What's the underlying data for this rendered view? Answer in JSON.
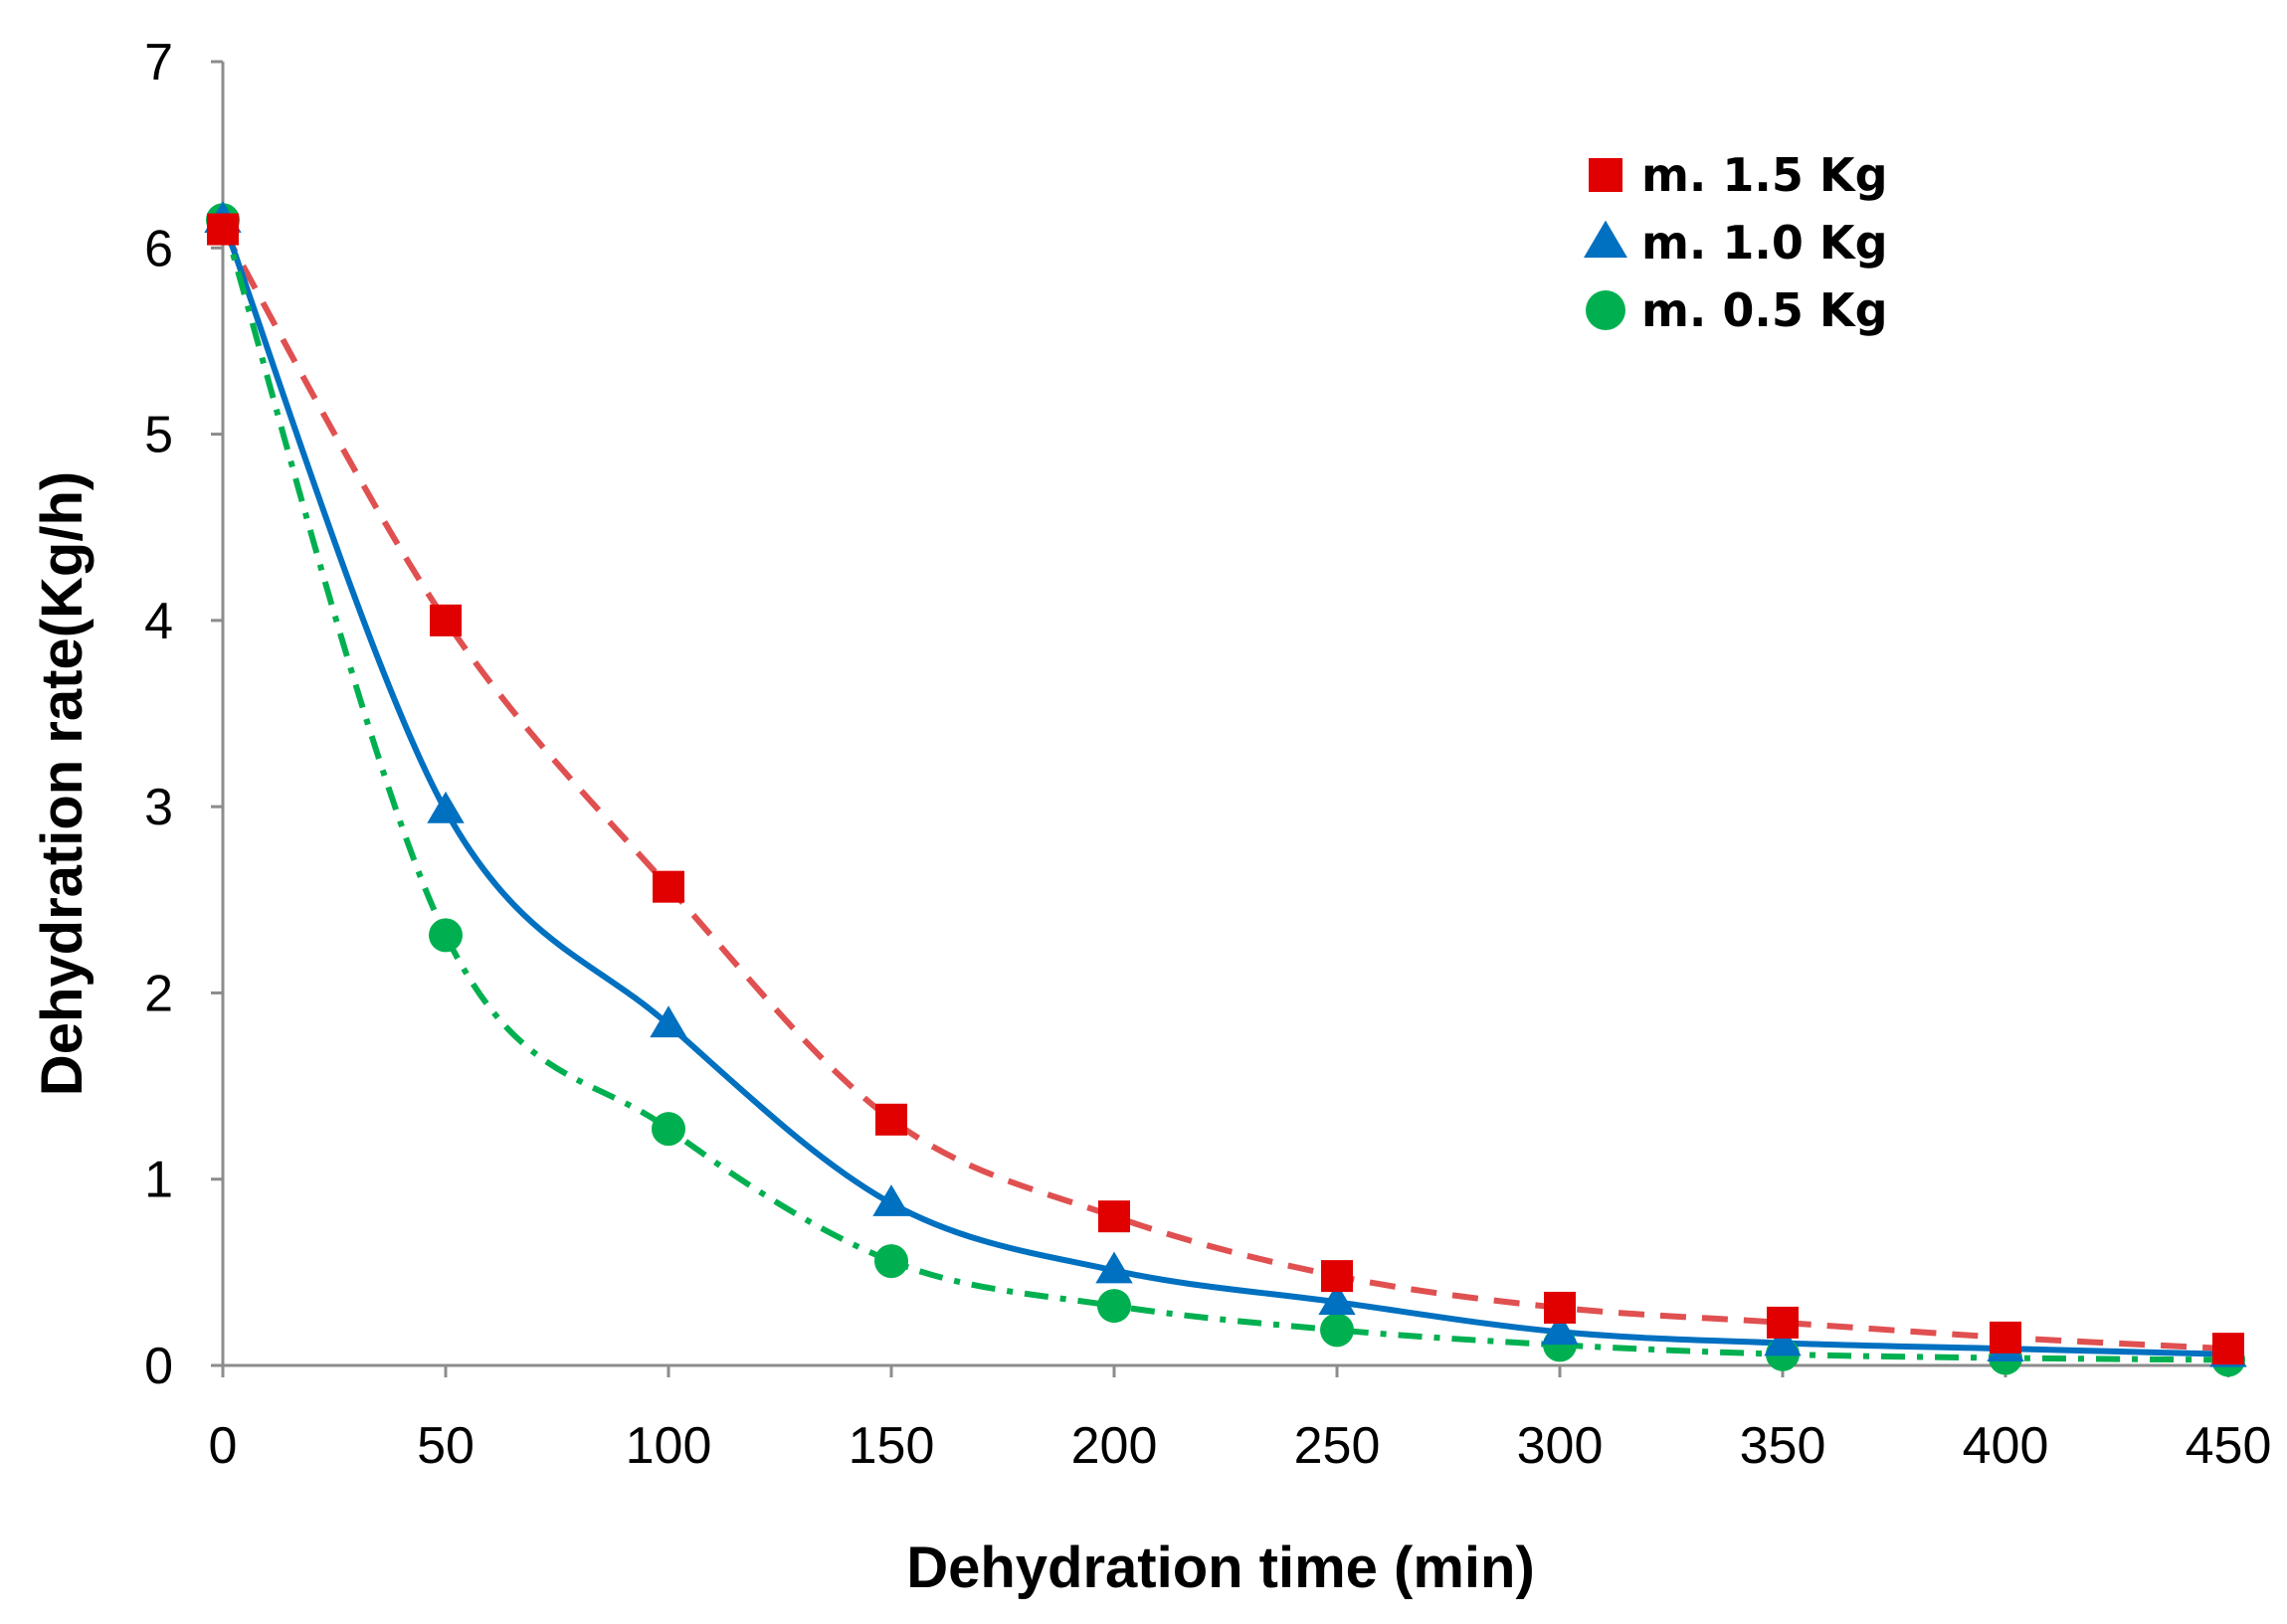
{
  "chart_data": {
    "type": "scatter",
    "title": "",
    "xlabel": "Dehydration time (min)",
    "ylabel": "Dehydration rate(Kg/h)",
    "xlim": [
      0,
      450
    ],
    "ylim": [
      0,
      7
    ],
    "x_ticks": [
      "0",
      "50",
      "100",
      "150",
      "200",
      "250",
      "300",
      "350",
      "400",
      "450"
    ],
    "y_ticks": [
      "0",
      "1",
      "2",
      "3",
      "4",
      "5",
      "6",
      "7"
    ],
    "grid": false,
    "legend_position": "top-right",
    "x": [
      0,
      50,
      100,
      150,
      200,
      250,
      300,
      350,
      400,
      450
    ],
    "series": [
      {
        "name": "m. 1.5 Kg",
        "marker": "square",
        "line_style": "dashed",
        "color": "#e00000",
        "line_color": "#e05050",
        "values": [
          6.1,
          4.0,
          2.57,
          1.32,
          0.8,
          0.48,
          0.31,
          0.23,
          0.15,
          0.09
        ]
      },
      {
        "name": "m. 1.0 Kg",
        "marker": "triangle",
        "line_style": "solid",
        "color": "#0070c0",
        "line_color": "#0070c0",
        "values": [
          6.15,
          2.98,
          1.83,
          0.87,
          0.51,
          0.34,
          0.18,
          0.12,
          0.09,
          0.06
        ]
      },
      {
        "name": "m. 0.5 Kg",
        "marker": "circle",
        "line_style": "dash-dot",
        "color": "#00b050",
        "line_color": "#00b050",
        "values": [
          6.15,
          2.31,
          1.27,
          0.56,
          0.32,
          0.19,
          0.11,
          0.06,
          0.04,
          0.03
        ]
      }
    ]
  }
}
